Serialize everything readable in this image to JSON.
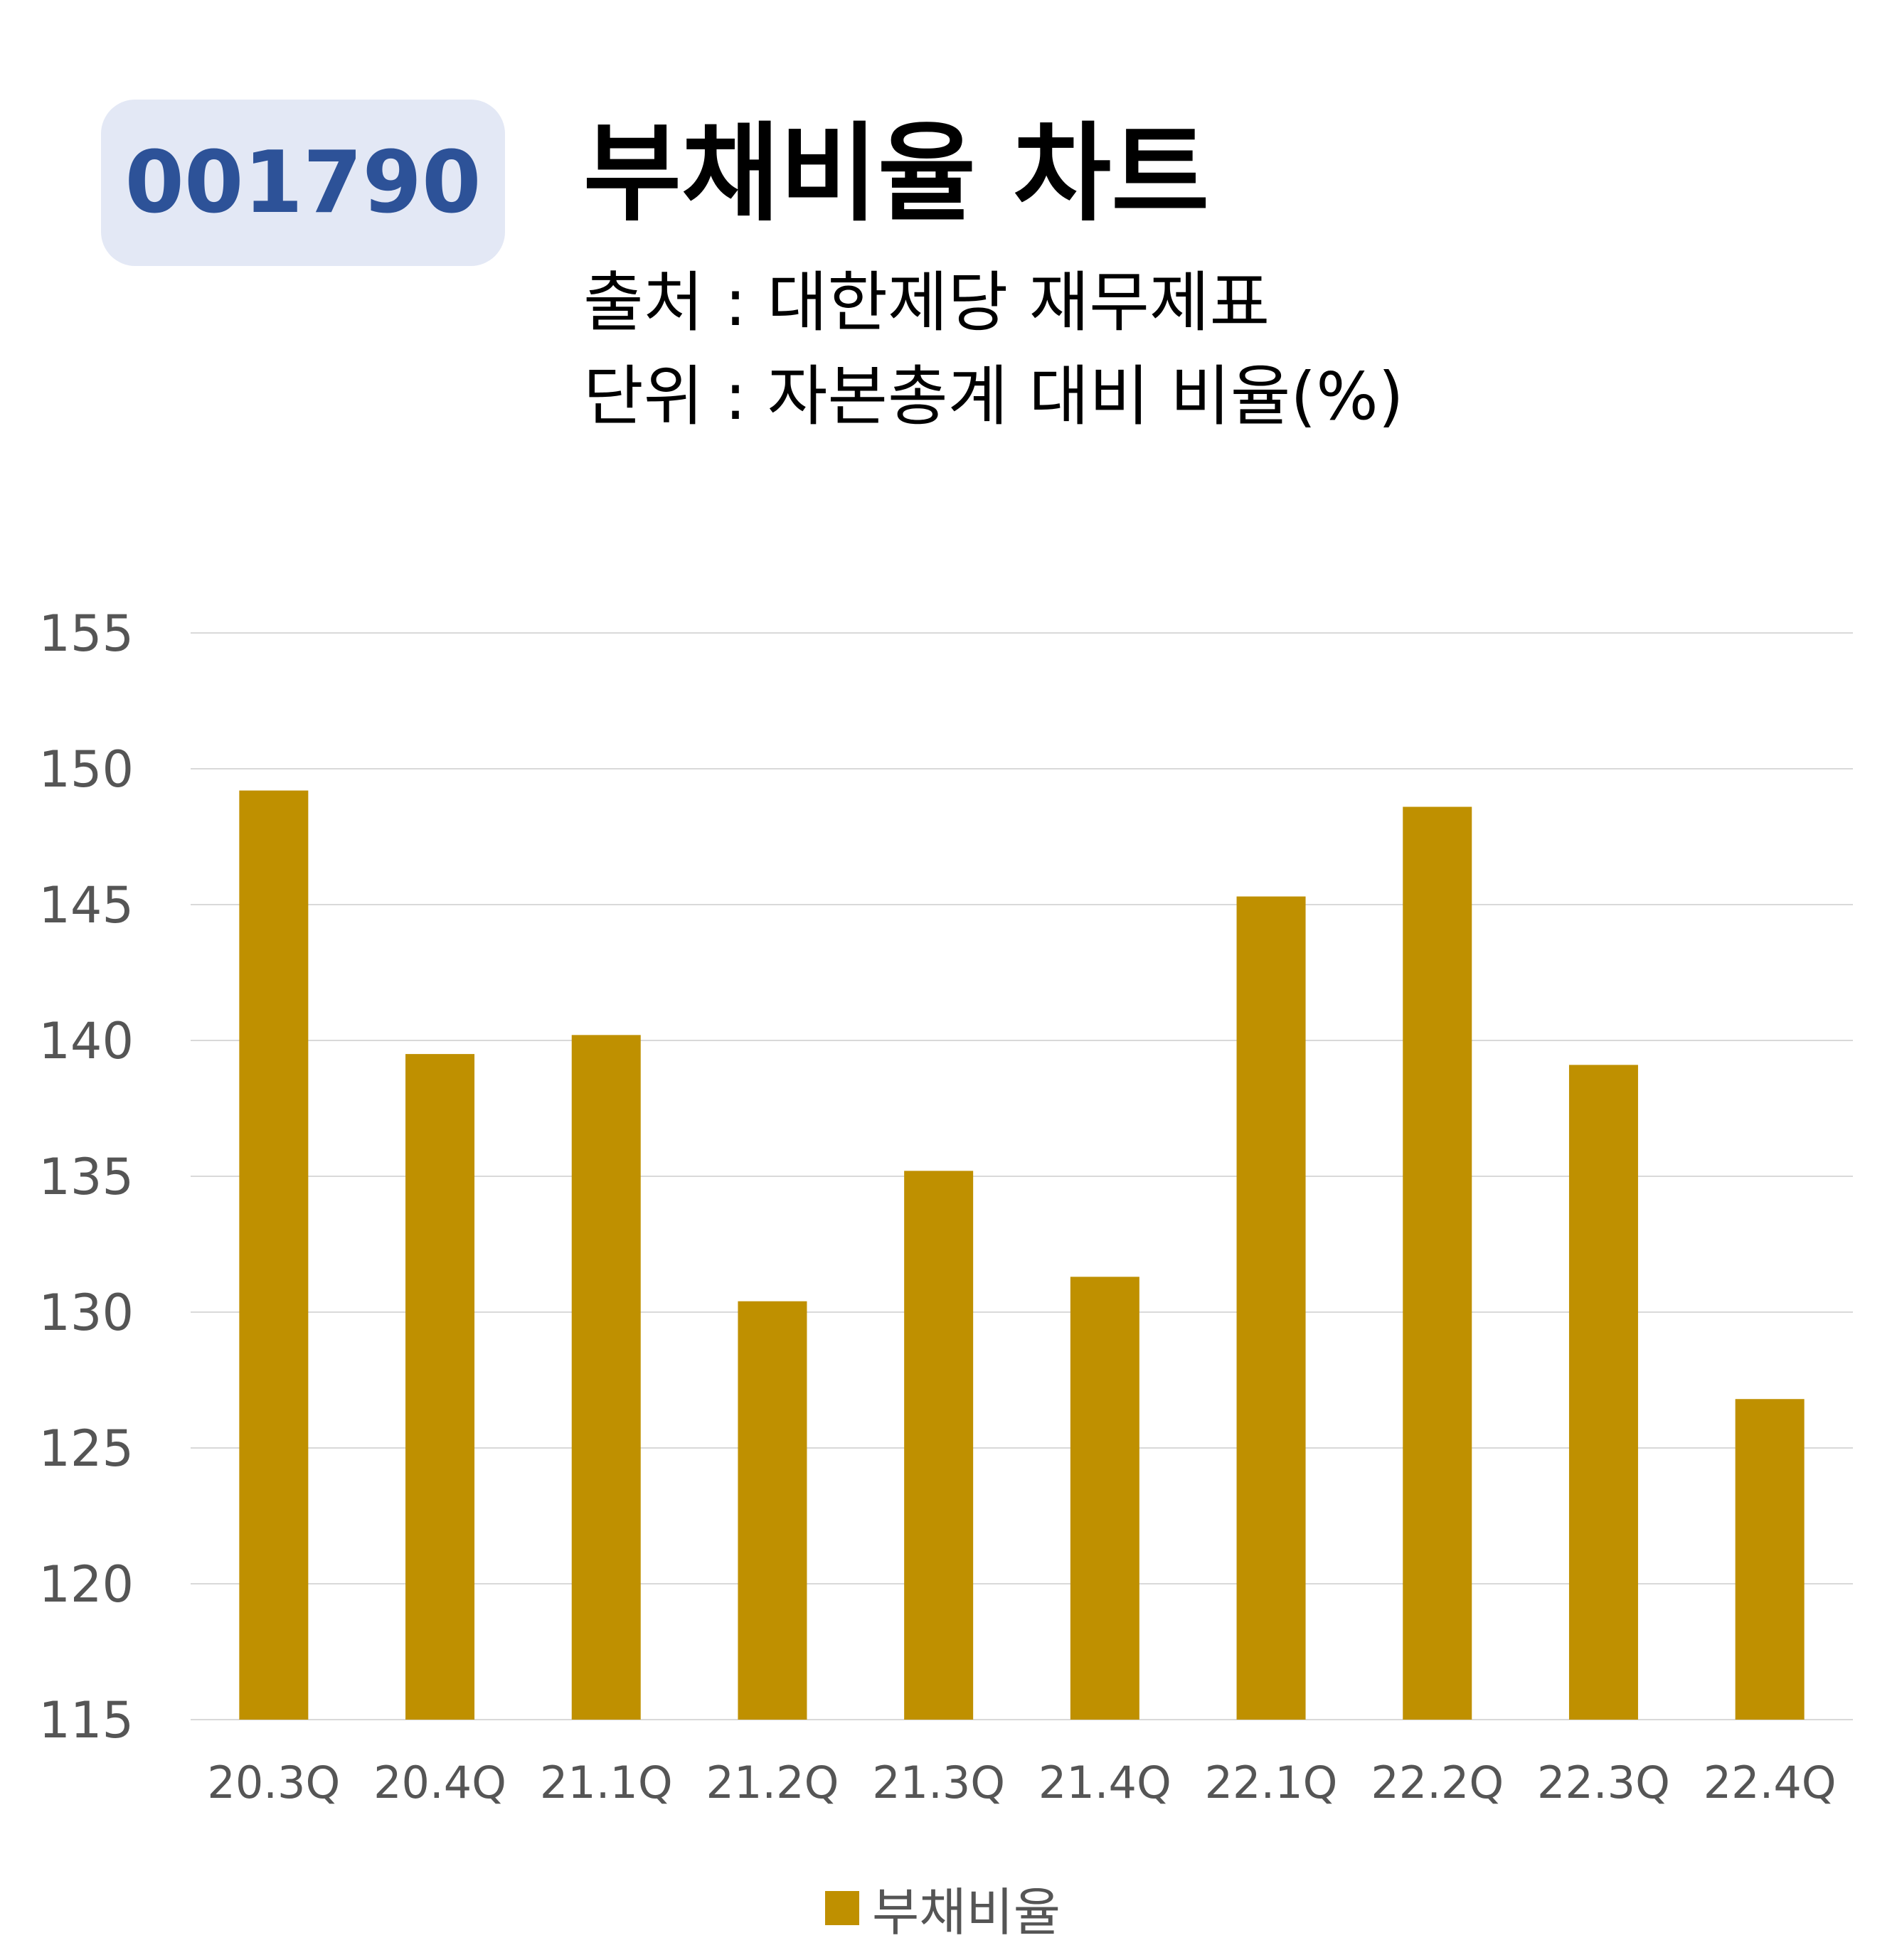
{
  "header": {
    "code": "001790",
    "title": "부채비율 차트",
    "source": "출처 : 대한제당 재무제표",
    "unit": "단위 : 자본총계 대비 비율(%)"
  },
  "colors": {
    "bar": "#bf9000",
    "badge_bg": "#e3e8f5",
    "badge_text": "#2d5298",
    "grid": "#d9d9d9"
  },
  "chart_data": {
    "type": "bar",
    "categories": [
      "20.3Q",
      "20.4Q",
      "21.1Q",
      "21.2Q",
      "21.3Q",
      "21.4Q",
      "22.1Q",
      "22.2Q",
      "22.3Q",
      "22.4Q"
    ],
    "series": [
      {
        "name": "부채비율",
        "values": [
          149.2,
          139.5,
          140.2,
          130.4,
          135.2,
          131.3,
          145.3,
          148.6,
          139.1,
          126.8
        ]
      }
    ],
    "ylim": [
      115,
      155
    ],
    "yticks": [
      115,
      120,
      125,
      130,
      135,
      140,
      145,
      150,
      155
    ],
    "grid": true,
    "legend": "bottom"
  }
}
